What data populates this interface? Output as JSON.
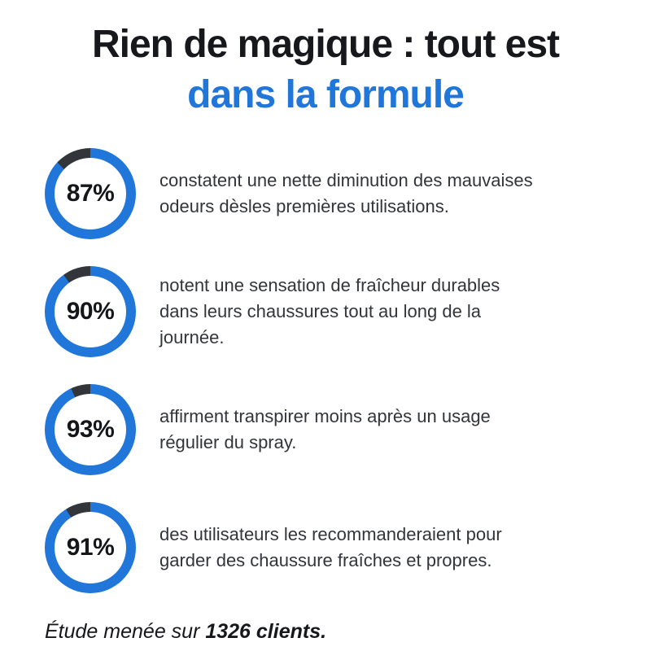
{
  "title": {
    "line1": "Rien de magique : tout est",
    "line2": "dans la formule"
  },
  "colors": {
    "accent_blue": "#2176D9",
    "ring_remainder_dark": "#32353A",
    "title_black": "#17181B",
    "body_text": "#323539",
    "percent_text": "#141619",
    "background": "#FFFFFF"
  },
  "chart_data": {
    "type": "pie",
    "variant": "circular-progress-rings",
    "title": "Rien de magique : tout est dans la formule",
    "unit": "%",
    "ring_filled_color": "#2176D9",
    "ring_remainder_color": "#32353A",
    "items": [
      {
        "value": 87,
        "label": "87%",
        "text": "constatent une nette diminution des mauvaises odeurs dèsles premières utilisations.",
        "lines": [
          "constatent une nette diminution des mauvaises",
          "odeurs dèsles premières utilisations."
        ]
      },
      {
        "value": 90,
        "label": "90%",
        "text": "notent une sensation de fraîcheur durables dans leurs chaussures tout au long de la journée.",
        "lines": [
          "notent une sensation de fraîcheur durables",
          "dans leurs chaussures tout au long de la",
          "journée."
        ]
      },
      {
        "value": 93,
        "label": "93%",
        "text": "affirment transpirer moins après un usage régulier du spray.",
        "lines": [
          "affirment transpirer moins après un usage",
          "régulier du spray."
        ]
      },
      {
        "value": 91,
        "label": "91%",
        "text": "des utilisateurs les recommanderaient pour garder des chaussure fraîches et propres.",
        "lines": [
          "des utilisateurs les recommanderaient pour",
          "garder des chaussure fraîches et propres."
        ]
      }
    ],
    "footnote": "Étude menée sur 1326 clients."
  },
  "footnote": {
    "prefix": "Étude menée sur ",
    "emphasis": "1326 clients."
  }
}
